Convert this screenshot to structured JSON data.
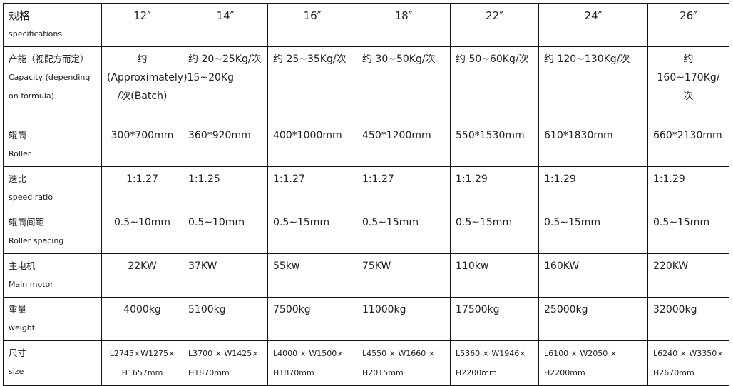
{
  "columns": [
    "12″",
    "14″",
    "16″",
    "18″",
    "22″",
    "24″",
    "26″"
  ],
  "rows": [
    {
      "zh": "规格",
      "en": "specifications"
    },
    {
      "zh": "产能（视配方而定）",
      "en": "Capacity    (depending on formula)",
      "values": [
        "约 (Approximately)15~20Kg /次(Batch)",
        "约 20~25Kg/次",
        "约 25~35Kg/次",
        "约 30~50Kg/次",
        "约 50~60Kg/次",
        "约 120~130Kg/次",
        "约 160~170Kg/次"
      ]
    },
    {
      "zh": "辊筒",
      "en": "Roller",
      "values": [
        "300*700mm",
        "360*920mm",
        "400*1000mm",
        "450*1200mm",
        "550*1530mm",
        "610*1830mm",
        "660*2130mm"
      ]
    },
    {
      "zh": "速比",
      "en": "speed ratio",
      "values": [
        "1:1.27",
        "1:1.25",
        "1:1.27",
        "1:1.27",
        "1:1.29",
        "1:1.29",
        "1:1.29"
      ]
    },
    {
      "zh": "辊筒间距",
      "en": "Roller spacing",
      "values": [
        "0.5~10mm",
        "0.5~10mm",
        "0.5~15mm",
        "0.5~15mm",
        "0.5~15mm",
        "0.5~15mm",
        "0.5~15mm"
      ]
    },
    {
      "zh": "主电机",
      "en": "Main motor",
      "values": [
        "22KW",
        "37KW",
        "55kw",
        "75KW",
        "110kw",
        "160KW",
        "220KW"
      ]
    },
    {
      "zh": "重量",
      "en": "weight",
      "values": [
        "4000kg",
        "5100kg",
        "7500kg",
        "11000kg",
        "17500kg",
        "25000kg",
        "32000kg"
      ]
    },
    {
      "zh": "尺寸",
      "en": "size",
      "values": [
        "L2745×W1275× H1657mm",
        "L3700 × W1425× H1870mm",
        "L4000 × W1500× H1870mm",
        "L4550 × W1660 × H2015mm",
        "L5360 × W1946× H2200mm",
        "L6100  ×  W2050  × H2200mm",
        "L6240 × W3350× H2670mm"
      ]
    }
  ]
}
